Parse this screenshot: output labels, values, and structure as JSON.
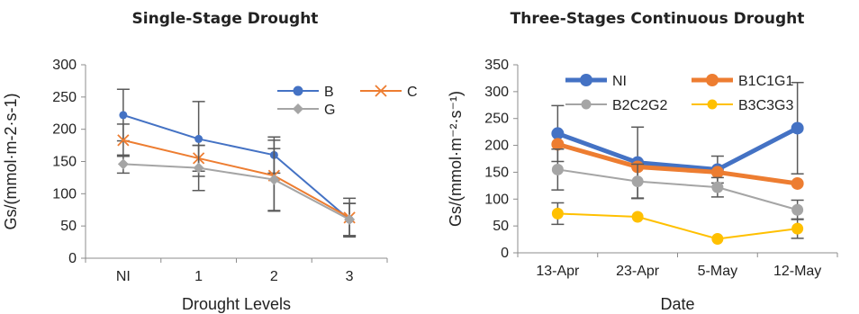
{
  "chart_data": [
    {
      "type": "line",
      "title": "Single-Stage Drought",
      "xlabel": "Drought Levels",
      "ylabel": "Gs/(mmol·m-2·s-1)",
      "categories": [
        "NI",
        "1",
        "2",
        "3"
      ],
      "ylim": [
        0,
        300
      ],
      "yticks": [
        0,
        50,
        100,
        150,
        200,
        250,
        300
      ],
      "grid": false,
      "legend_position": "top-right",
      "series": [
        {
          "name": "B",
          "color": "#4472C4",
          "marker": "circle",
          "values": [
            222,
            185,
            160,
            60
          ],
          "error": [
            40,
            58,
            28,
            25
          ]
        },
        {
          "name": "C",
          "color": "#ED7D31",
          "marker": "x",
          "values": [
            183,
            155,
            128,
            63
          ],
          "error": [
            25,
            20,
            55,
            30
          ]
        },
        {
          "name": "G",
          "color": "#A5A5A5",
          "marker": "diamond",
          "values": [
            146,
            140,
            122,
            60
          ],
          "error": [
            14,
            35,
            48,
            25
          ]
        }
      ]
    },
    {
      "type": "line",
      "title": "Three-Stages Continuous Drought",
      "xlabel": "Date",
      "ylabel": "Gs/(mmol·m⁻²·s⁻¹)",
      "categories": [
        "13-Apr",
        "23-Apr",
        "5-May",
        "12-May"
      ],
      "ylim": [
        0,
        350
      ],
      "yticks": [
        0,
        50,
        100,
        150,
        200,
        250,
        300,
        350
      ],
      "grid": false,
      "legend_position": "top",
      "series": [
        {
          "name": "NI",
          "color": "#4472C4",
          "marker": "circle",
          "thick": true,
          "values": [
            222,
            168,
            155,
            232
          ],
          "error": [
            52,
            66,
            25,
            85
          ]
        },
        {
          "name": "B1C1G1",
          "color": "#ED7D31",
          "marker": "circle",
          "thick": true,
          "values": [
            202,
            160,
            150,
            129
          ],
          "error": [
            0,
            0,
            0,
            0
          ]
        },
        {
          "name": "B2C2G2",
          "color": "#A5A5A5",
          "marker": "circle",
          "thick": false,
          "values": [
            155,
            133,
            122,
            80
          ],
          "error": [
            38,
            32,
            18,
            18
          ]
        },
        {
          "name": "B3C3G3",
          "color": "#FFC000",
          "marker": "circle",
          "thick": false,
          "values": [
            73,
            67,
            26,
            45
          ],
          "error": [
            20,
            0,
            0,
            18
          ]
        }
      ]
    }
  ]
}
